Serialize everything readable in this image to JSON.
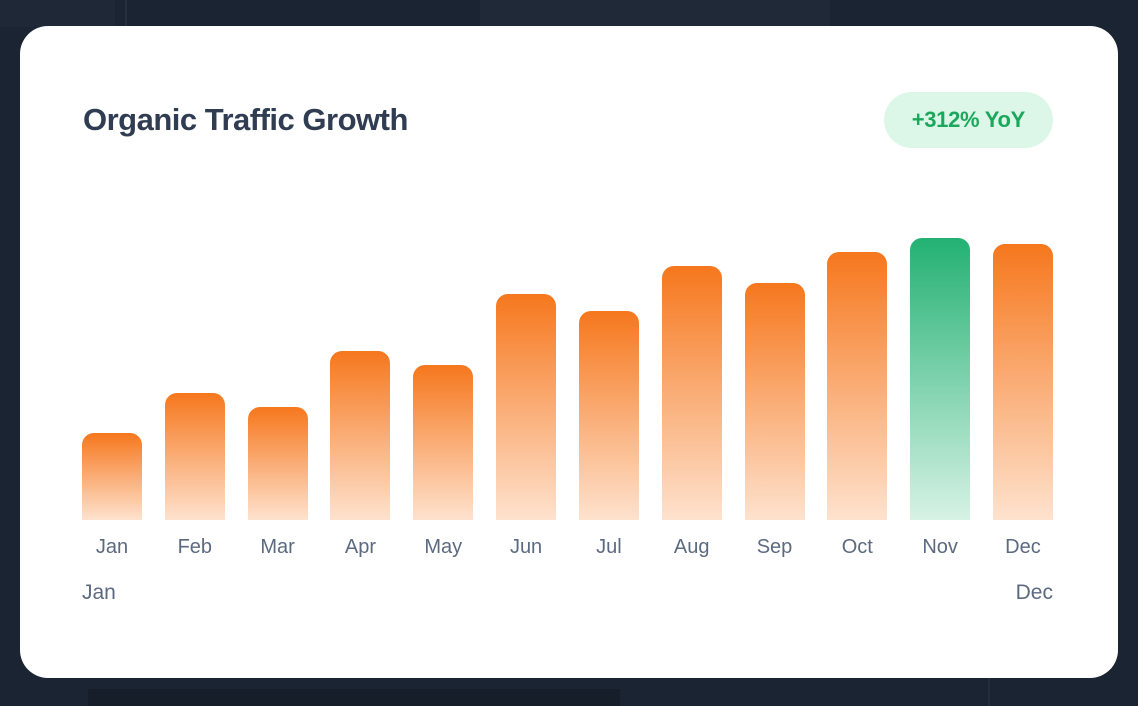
{
  "theme": {
    "page_bg": "#1b2433",
    "card_bg": "#ffffff",
    "title_color": "#2f3c52",
    "axis_label_color": "#5c6a80"
  },
  "card": {
    "title": "Organic Traffic Growth",
    "badge": {
      "label": "+312% YoY",
      "bg": "#dcf7e8",
      "text_color": "#1ba75c"
    }
  },
  "chart_data": {
    "type": "bar",
    "title": "Organic Traffic Growth",
    "categories": [
      "Jan",
      "Feb",
      "Mar",
      "Apr",
      "May",
      "Jun",
      "Jul",
      "Aug",
      "Sep",
      "Oct",
      "Nov",
      "Dec"
    ],
    "values": [
      31,
      45,
      40,
      60,
      55,
      80,
      74,
      90,
      84,
      95,
      100,
      98
    ],
    "values_note": "no y-axis shown; values are bar heights as percent of tallest bar (Nov = 100)",
    "ylim": [
      0,
      100
    ],
    "grid": false,
    "legend": null,
    "annotation_badge": "+312% YoY",
    "bar_style": {
      "default_gradient_top": "#f6771d",
      "default_gradient_bottom": "#fee2ce",
      "highlight_category": "Nov",
      "highlight_gradient_top": "#23b173",
      "highlight_gradient_bottom": "#d7f2e5"
    },
    "x_axis_range_labels": {
      "start": "Jan",
      "end": "Dec"
    }
  }
}
